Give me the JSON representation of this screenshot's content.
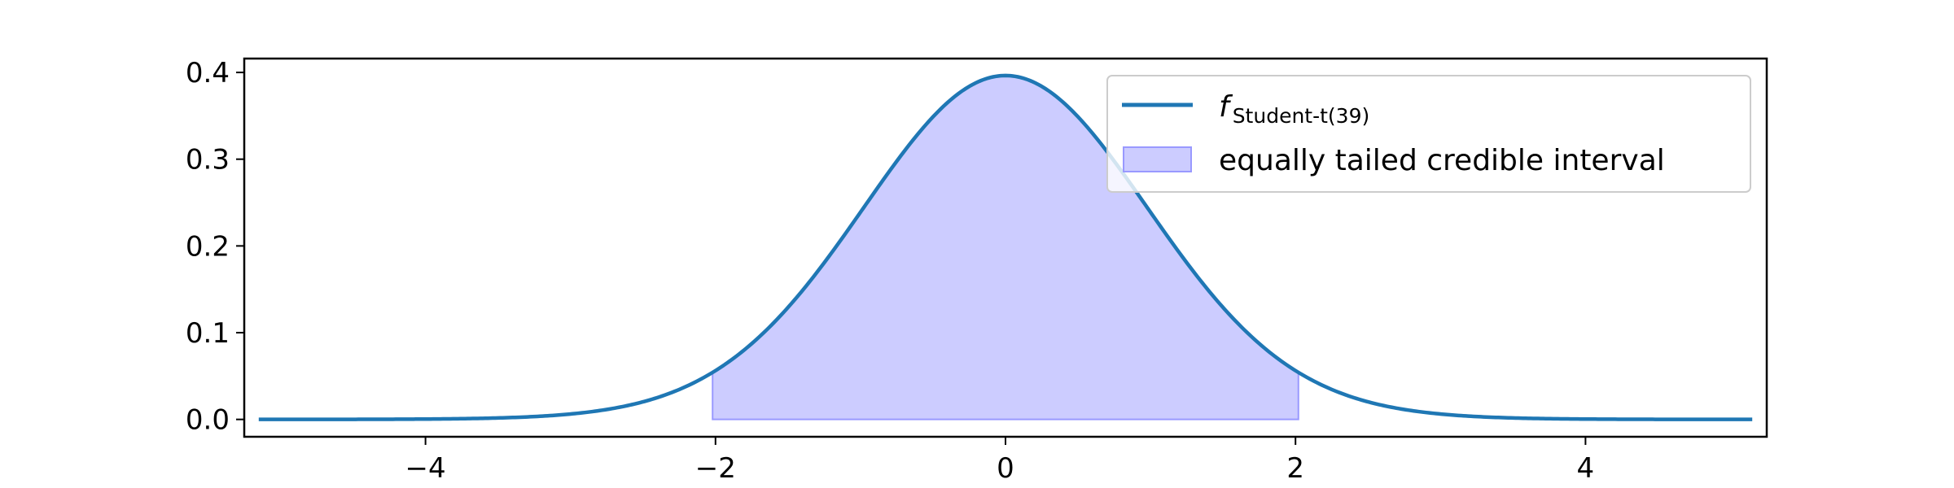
{
  "chart_data": {
    "type": "area",
    "title": "",
    "xlabel": "",
    "ylabel": "",
    "xlim": [
      -5.25,
      5.25
    ],
    "ylim": [
      -0.02,
      0.416
    ],
    "xticks": [
      -4,
      -2,
      0,
      2,
      4
    ],
    "xtick_labels": [
      "−4",
      "−2",
      "0",
      "2",
      "4"
    ],
    "yticks": [
      0.0,
      0.1,
      0.2,
      0.3,
      0.4
    ],
    "ytick_labels": [
      "0.0",
      "0.1",
      "0.2",
      "0.3",
      "0.4"
    ],
    "grid": false,
    "legend_position": "top-right",
    "series": [
      {
        "type": "line",
        "legend_main": "f",
        "legend_sub": "Student-t(39)",
        "color": "#1f77b4",
        "distribution": "student-t",
        "df": 39,
        "x_range": [
          -5.15,
          5.15
        ],
        "peak": {
          "x": 0,
          "y": 0.397
        }
      },
      {
        "type": "area",
        "name": "equally tailed credible interval",
        "color": "#ccccff",
        "edge_color": "#9999ff",
        "x_range": [
          -2.02,
          2.02
        ]
      }
    ]
  }
}
